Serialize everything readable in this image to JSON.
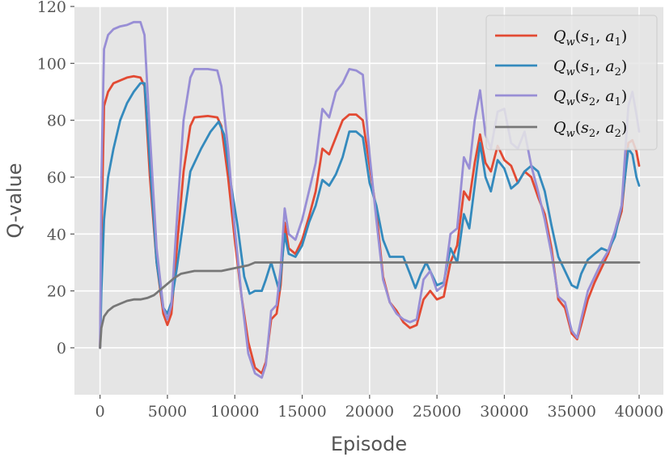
{
  "chart_data": {
    "type": "line",
    "xlabel": "Episode",
    "ylabel": "Q-value",
    "xlim": [
      -1900,
      41800
    ],
    "ylim": [
      -16.5,
      120
    ],
    "xticks": [
      0,
      5000,
      10000,
      15000,
      20000,
      25000,
      30000,
      35000,
      40000
    ],
    "xtick_labels": [
      "0",
      "5000",
      "10000",
      "15000",
      "20000",
      "25000",
      "30000",
      "35000",
      "40000"
    ],
    "yticks": [
      0,
      20,
      40,
      60,
      80,
      100,
      120
    ],
    "ytick_labels": [
      "0",
      "20",
      "40",
      "60",
      "80",
      "100",
      "120"
    ],
    "grid": true,
    "legend_position": "top-right",
    "series": [
      {
        "name": "Q_w(s_1, a_1)",
        "color": "#e24a33",
        "points": [
          [
            0,
            0
          ],
          [
            100,
            38
          ],
          [
            300,
            85
          ],
          [
            600,
            90
          ],
          [
            1000,
            93
          ],
          [
            1500,
            94
          ],
          [
            2000,
            95
          ],
          [
            2500,
            95.5
          ],
          [
            3000,
            95
          ],
          [
            3300,
            92
          ],
          [
            3700,
            60
          ],
          [
            4200,
            30
          ],
          [
            4700,
            12
          ],
          [
            5000,
            8
          ],
          [
            5300,
            12
          ],
          [
            5700,
            35
          ],
          [
            6200,
            62
          ],
          [
            6700,
            78
          ],
          [
            7000,
            81
          ],
          [
            8000,
            81.5
          ],
          [
            8700,
            81
          ],
          [
            9000,
            78
          ],
          [
            9500,
            60
          ],
          [
            10000,
            38
          ],
          [
            10500,
            18
          ],
          [
            11000,
            2
          ],
          [
            11500,
            -7
          ],
          [
            12000,
            -9
          ],
          [
            12300,
            -5
          ],
          [
            12700,
            10
          ],
          [
            13100,
            12
          ],
          [
            13400,
            22
          ],
          [
            13700,
            44
          ],
          [
            14000,
            35
          ],
          [
            14500,
            33
          ],
          [
            15000,
            38
          ],
          [
            15500,
            46
          ],
          [
            16000,
            55
          ],
          [
            16500,
            70
          ],
          [
            17000,
            68
          ],
          [
            17500,
            74
          ],
          [
            18000,
            80
          ],
          [
            18500,
            82
          ],
          [
            19000,
            82
          ],
          [
            19500,
            80
          ],
          [
            20000,
            64
          ],
          [
            20500,
            48
          ],
          [
            21000,
            25
          ],
          [
            21500,
            16
          ],
          [
            22000,
            13
          ],
          [
            22500,
            9
          ],
          [
            23000,
            7
          ],
          [
            23500,
            8
          ],
          [
            24000,
            17
          ],
          [
            24500,
            20
          ],
          [
            25000,
            17
          ],
          [
            25500,
            18
          ],
          [
            26000,
            30
          ],
          [
            26500,
            36
          ],
          [
            27000,
            55
          ],
          [
            27400,
            52
          ],
          [
            27800,
            65
          ],
          [
            28200,
            75
          ],
          [
            28600,
            65
          ],
          [
            29000,
            62
          ],
          [
            29500,
            71
          ],
          [
            30000,
            66
          ],
          [
            30500,
            64
          ],
          [
            31000,
            58
          ],
          [
            31500,
            62
          ],
          [
            32000,
            60
          ],
          [
            32500,
            53
          ],
          [
            33000,
            47
          ],
          [
            33500,
            35
          ],
          [
            34000,
            17
          ],
          [
            34500,
            14
          ],
          [
            35000,
            5
          ],
          [
            35400,
            3
          ],
          [
            35700,
            8
          ],
          [
            36200,
            17
          ],
          [
            36700,
            23
          ],
          [
            37200,
            28
          ],
          [
            37700,
            33
          ],
          [
            38200,
            40
          ],
          [
            38700,
            48
          ],
          [
            39200,
            72
          ],
          [
            39500,
            73
          ],
          [
            39800,
            69
          ],
          [
            40000,
            64
          ]
        ]
      },
      {
        "name": "Q_w(s_1, a_2)",
        "color": "#348abd",
        "points": [
          [
            0,
            0
          ],
          [
            100,
            20
          ],
          [
            300,
            45
          ],
          [
            600,
            60
          ],
          [
            1000,
            70
          ],
          [
            1500,
            80
          ],
          [
            2000,
            86
          ],
          [
            2500,
            90
          ],
          [
            3000,
            93
          ],
          [
            3300,
            93
          ],
          [
            3700,
            65
          ],
          [
            4200,
            30
          ],
          [
            4700,
            14
          ],
          [
            5000,
            12
          ],
          [
            5300,
            16
          ],
          [
            5700,
            28
          ],
          [
            6200,
            45
          ],
          [
            6700,
            62
          ],
          [
            7500,
            70
          ],
          [
            8200,
            76
          ],
          [
            8800,
            79.5
          ],
          [
            9200,
            75
          ],
          [
            9700,
            58
          ],
          [
            10200,
            43
          ],
          [
            10700,
            25
          ],
          [
            11100,
            19
          ],
          [
            11500,
            20
          ],
          [
            12000,
            20
          ],
          [
            12300,
            24
          ],
          [
            12700,
            30
          ],
          [
            13000,
            25
          ],
          [
            13300,
            20
          ],
          [
            13700,
            40
          ],
          [
            14000,
            33
          ],
          [
            14500,
            32
          ],
          [
            15000,
            36
          ],
          [
            15500,
            44
          ],
          [
            16000,
            50
          ],
          [
            16500,
            59
          ],
          [
            17000,
            57
          ],
          [
            17500,
            61
          ],
          [
            18000,
            67
          ],
          [
            18500,
            76
          ],
          [
            19000,
            76
          ],
          [
            19500,
            74
          ],
          [
            20000,
            58
          ],
          [
            20500,
            50
          ],
          [
            21000,
            38
          ],
          [
            21500,
            32
          ],
          [
            22000,
            32
          ],
          [
            22500,
            32
          ],
          [
            23000,
            26
          ],
          [
            23400,
            21
          ],
          [
            23800,
            26
          ],
          [
            24200,
            30
          ],
          [
            24700,
            25
          ],
          [
            25000,
            22
          ],
          [
            25500,
            23
          ],
          [
            26000,
            35
          ],
          [
            26500,
            30
          ],
          [
            27000,
            47
          ],
          [
            27400,
            42
          ],
          [
            27800,
            57
          ],
          [
            28200,
            72
          ],
          [
            28600,
            60
          ],
          [
            29000,
            55
          ],
          [
            29500,
            66
          ],
          [
            30000,
            63
          ],
          [
            30500,
            56
          ],
          [
            31000,
            58
          ],
          [
            31500,
            62
          ],
          [
            32000,
            64
          ],
          [
            32500,
            62
          ],
          [
            33000,
            55
          ],
          [
            33500,
            43
          ],
          [
            34000,
            32
          ],
          [
            34500,
            27
          ],
          [
            35000,
            22
          ],
          [
            35400,
            21
          ],
          [
            35700,
            26
          ],
          [
            36200,
            31
          ],
          [
            36700,
            33
          ],
          [
            37200,
            35
          ],
          [
            37700,
            34
          ],
          [
            38200,
            39
          ],
          [
            38700,
            50
          ],
          [
            39200,
            70
          ],
          [
            39500,
            68
          ],
          [
            39800,
            60
          ],
          [
            40000,
            57
          ]
        ]
      },
      {
        "name": "Q_w(s_2, a_1)",
        "color": "#988ed5",
        "points": [
          [
            0,
            0
          ],
          [
            100,
            60
          ],
          [
            300,
            105
          ],
          [
            600,
            110
          ],
          [
            1000,
            112
          ],
          [
            1500,
            113
          ],
          [
            2000,
            113.5
          ],
          [
            2500,
            114.5
          ],
          [
            3000,
            114.5
          ],
          [
            3300,
            110
          ],
          [
            3700,
            75
          ],
          [
            4200,
            35
          ],
          [
            4700,
            14
          ],
          [
            5000,
            10
          ],
          [
            5300,
            15
          ],
          [
            5700,
            45
          ],
          [
            6200,
            80
          ],
          [
            6700,
            95
          ],
          [
            7000,
            98
          ],
          [
            8000,
            98
          ],
          [
            8700,
            97.5
          ],
          [
            9000,
            92
          ],
          [
            9500,
            70
          ],
          [
            10000,
            42
          ],
          [
            10500,
            18
          ],
          [
            11000,
            -2
          ],
          [
            11500,
            -9
          ],
          [
            12000,
            -10.5
          ],
          [
            12300,
            -6
          ],
          [
            12700,
            13
          ],
          [
            13100,
            15
          ],
          [
            13400,
            28
          ],
          [
            13700,
            49
          ],
          [
            14000,
            40
          ],
          [
            14500,
            38
          ],
          [
            15000,
            45
          ],
          [
            15500,
            55
          ],
          [
            16000,
            65
          ],
          [
            16500,
            84
          ],
          [
            17000,
            81
          ],
          [
            17500,
            90
          ],
          [
            18000,
            93
          ],
          [
            18500,
            98
          ],
          [
            19000,
            97.5
          ],
          [
            19500,
            96
          ],
          [
            20000,
            68
          ],
          [
            20500,
            45
          ],
          [
            21000,
            24
          ],
          [
            21500,
            16
          ],
          [
            22000,
            12
          ],
          [
            22500,
            10
          ],
          [
            23000,
            9
          ],
          [
            23500,
            10
          ],
          [
            24000,
            24
          ],
          [
            24500,
            27
          ],
          [
            25000,
            20
          ],
          [
            25500,
            22
          ],
          [
            26000,
            40
          ],
          [
            26500,
            42
          ],
          [
            27000,
            67
          ],
          [
            27400,
            63
          ],
          [
            27800,
            80
          ],
          [
            28200,
            90.5
          ],
          [
            28600,
            75
          ],
          [
            29000,
            70
          ],
          [
            29500,
            83
          ],
          [
            30000,
            84
          ],
          [
            30500,
            72
          ],
          [
            31000,
            70
          ],
          [
            31500,
            76
          ],
          [
            32000,
            64
          ],
          [
            32500,
            55
          ],
          [
            33000,
            45
          ],
          [
            33500,
            33
          ],
          [
            34000,
            18
          ],
          [
            34500,
            16
          ],
          [
            35000,
            6
          ],
          [
            35400,
            3.5
          ],
          [
            35700,
            10
          ],
          [
            36200,
            20
          ],
          [
            36700,
            25
          ],
          [
            37200,
            30
          ],
          [
            37700,
            34
          ],
          [
            38200,
            41
          ],
          [
            38700,
            50
          ],
          [
            39200,
            85
          ],
          [
            39500,
            90
          ],
          [
            39800,
            82
          ],
          [
            40000,
            76
          ]
        ]
      },
      {
        "name": "Q_w(s_2, a_2)",
        "color": "#777777",
        "points": [
          [
            0,
            0
          ],
          [
            100,
            7
          ],
          [
            300,
            11
          ],
          [
            600,
            13
          ],
          [
            1000,
            14.5
          ],
          [
            1500,
            15.5
          ],
          [
            2000,
            16.5
          ],
          [
            2500,
            17
          ],
          [
            3000,
            17
          ],
          [
            3500,
            17.5
          ],
          [
            4000,
            18.5
          ],
          [
            4500,
            20.5
          ],
          [
            5000,
            22.5
          ],
          [
            5500,
            24.5
          ],
          [
            6000,
            26
          ],
          [
            6500,
            26.5
          ],
          [
            7000,
            27
          ],
          [
            8000,
            27
          ],
          [
            9000,
            27
          ],
          [
            10000,
            28
          ],
          [
            11000,
            29
          ],
          [
            11500,
            30
          ],
          [
            12000,
            30
          ],
          [
            40000,
            30
          ]
        ]
      }
    ]
  }
}
